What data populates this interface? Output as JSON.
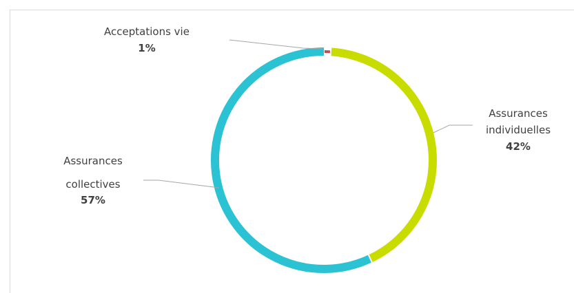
{
  "chart_data": {
    "type": "pie",
    "variant": "donut",
    "categories": [
      "Acceptations vie",
      "Assurances individuelles",
      "Assurances collectives"
    ],
    "values": [
      1,
      42,
      57
    ],
    "labels": [
      {
        "name": "Acceptations vie",
        "pct": "1%"
      },
      {
        "name": "Assurances individuelles",
        "pct": "42%"
      },
      {
        "name": "Assurances collectives",
        "pct": "57%"
      }
    ],
    "colors": [
      "#c0504d",
      "#c9dc00",
      "#2bc3d4"
    ],
    "title": "",
    "legend": "none"
  }
}
